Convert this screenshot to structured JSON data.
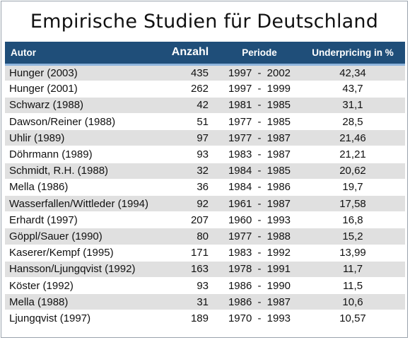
{
  "title": "Empirische Studien für Deutschland",
  "headers": {
    "autor": "Autor",
    "anzahl": "Anzahl",
    "periode": "Periode",
    "underpricing": "Underpricing in %"
  },
  "rows": [
    {
      "autor": "Hunger (2003)",
      "anzahl": "435",
      "periode": "1997  -  2002",
      "underpricing": "42,34"
    },
    {
      "autor": "Hunger (2001)",
      "anzahl": "262",
      "periode": "1997  -  1999",
      "underpricing": "43,7"
    },
    {
      "autor": "Schwarz (1988)",
      "anzahl": "42",
      "periode": "1981  -  1985",
      "underpricing": "31,1"
    },
    {
      "autor": "Dawson/Reiner (1988)",
      "anzahl": "51",
      "periode": "1977  -  1985",
      "underpricing": "28,5"
    },
    {
      "autor": "Uhlir (1989)",
      "anzahl": "97",
      "periode": "1977  -  1987",
      "underpricing": "21,46"
    },
    {
      "autor": "Döhrmann (1989)",
      "anzahl": "93",
      "periode": "1983  -  1987",
      "underpricing": "21,21"
    },
    {
      "autor": "Schmidt, R.H. (1988)",
      "anzahl": "32",
      "periode": "1984  -  1985",
      "underpricing": "20,62"
    },
    {
      "autor": "Mella (1986)",
      "anzahl": "36",
      "periode": "1984  -  1986",
      "underpricing": "19,7"
    },
    {
      "autor": "Wasserfallen/Wittleder (1994)",
      "anzahl": "92",
      "periode": "1961  -  1987",
      "underpricing": "17,58"
    },
    {
      "autor": "Erhardt (1997)",
      "anzahl": "207",
      "periode": "1960  -  1993",
      "underpricing": "16,8"
    },
    {
      "autor": "Göppl/Sauer (1990)",
      "anzahl": "80",
      "periode": "1977  -  1988",
      "underpricing": "15,2"
    },
    {
      "autor": "Kaserer/Kempf (1995)",
      "anzahl": "171",
      "periode": "1983  -  1992",
      "underpricing": "13,99"
    },
    {
      "autor": "Hansson/Ljungqvist (1992)",
      "anzahl": "163",
      "periode": "1978  -  1991",
      "underpricing": "11,7"
    },
    {
      "autor": "Köster (1992)",
      "anzahl": "93",
      "periode": "1986  -  1990",
      "underpricing": "11,5"
    },
    {
      "autor": "Mella (1988)",
      "anzahl": "31",
      "periode": "1986  -  1987",
      "underpricing": "10,6"
    },
    {
      "autor": "Ljungqvist (1997)",
      "anzahl": "189",
      "periode": "1970  -  1993",
      "underpricing": "10,57"
    }
  ],
  "colors": {
    "header_bg": "#1f4e79",
    "header_rule": "#8eb4dc",
    "row_shade": "#e0e0e0"
  }
}
